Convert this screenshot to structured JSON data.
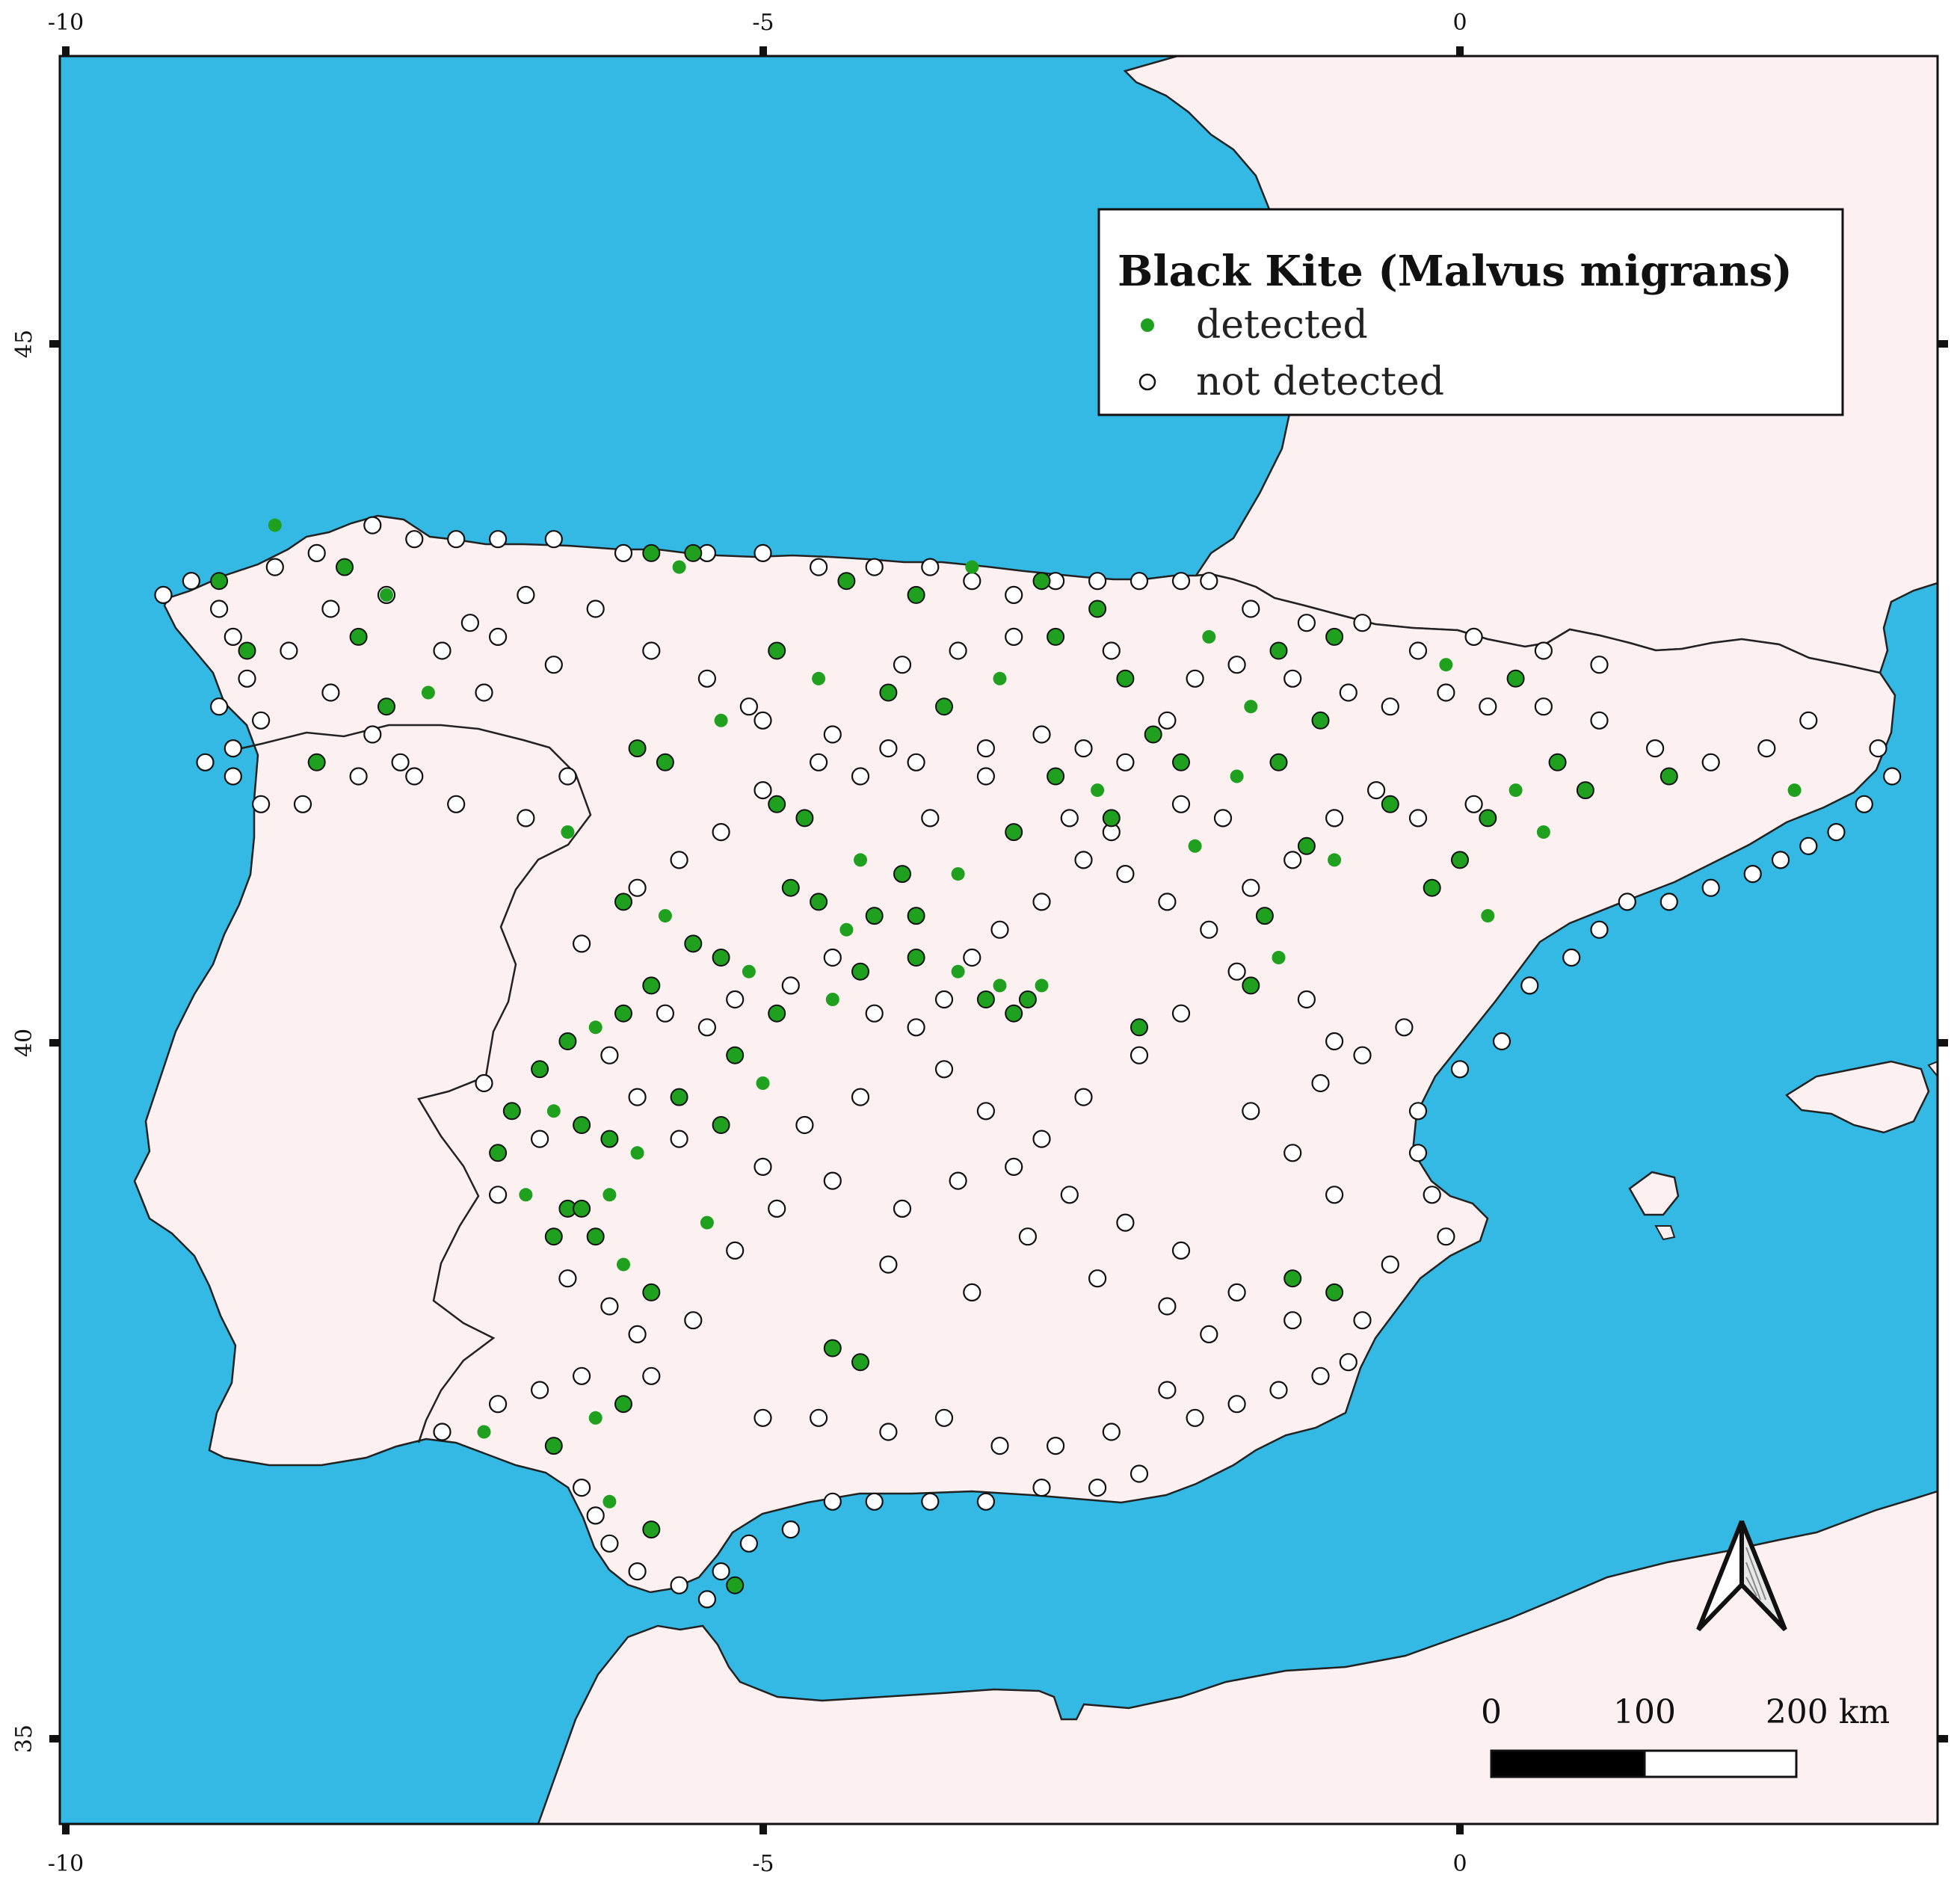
{
  "legend": {
    "title": "Black Kite (Malvus migrans)",
    "detected_label": "detected",
    "not_detected_label": "not detected"
  },
  "axes": {
    "x_ticks_top": [
      "-10",
      "-5",
      "0"
    ],
    "x_ticks_bottom": [
      "-10",
      "-5",
      "0"
    ],
    "y_ticks": [
      "45",
      "40",
      "35"
    ]
  },
  "scale_bar": {
    "labels": [
      "0",
      "100",
      "200 km"
    ]
  },
  "colors": {
    "sea": "#33b9e3",
    "land": "#fdf0f0",
    "detected": "#1fa01f",
    "not_detected": "#ffffff",
    "border": "#222222"
  },
  "icons": {
    "north_arrow": "north-arrow-icon"
  },
  "map_data": {
    "extent": {
      "lon_min": -10.0,
      "lon_max": 3.5,
      "lat_min": 34.4,
      "lat_max": 47.0
    },
    "detected_points": [
      [
        -8.5,
        43.7
      ],
      [
        -8.9,
        43.3
      ],
      [
        -8.0,
        43.4
      ],
      [
        -7.7,
        43.2
      ],
      [
        -7.9,
        42.9
      ],
      [
        -7.7,
        42.4
      ],
      [
        -7.4,
        42.5
      ],
      [
        -8.7,
        42.8
      ],
      [
        -8.2,
        42.0
      ],
      [
        -6.4,
        41.5
      ],
      [
        -5.8,
        43.5
      ],
      [
        -5.5,
        43.5
      ],
      [
        -5.6,
        43.4
      ],
      [
        -5.7,
        42.0
      ],
      [
        -5.9,
        42.1
      ],
      [
        -5.3,
        42.3
      ],
      [
        -4.9,
        41.7
      ],
      [
        -4.7,
        41.6
      ],
      [
        -4.3,
        41.3
      ],
      [
        -4.0,
        41.2
      ],
      [
        -3.9,
        40.9
      ],
      [
        -3.6,
        41.2
      ],
      [
        -3.2,
        41.5
      ],
      [
        -2.9,
        41.9
      ],
      [
        -2.6,
        41.8
      ],
      [
        -2.2,
        42.2
      ],
      [
        -2.0,
        42.0
      ],
      [
        -1.6,
        41.9
      ],
      [
        -1.3,
        42.0
      ],
      [
        -1.1,
        41.4
      ],
      [
        -0.9,
        41.3
      ],
      [
        -0.5,
        41.7
      ],
      [
        0.2,
        41.6
      ],
      [
        0.4,
        41.8
      ],
      [
        0.7,
        42.0
      ],
      [
        1.5,
        41.9
      ],
      [
        2.4,
        41.8
      ],
      [
        -4.4,
        43.3
      ],
      [
        -3.9,
        43.2
      ],
      [
        -3.5,
        43.4
      ],
      [
        -3.0,
        43.3
      ],
      [
        -2.6,
        43.1
      ],
      [
        -1.8,
        42.9
      ],
      [
        -1.3,
        42.8
      ],
      [
        -0.9,
        42.9
      ],
      [
        -0.1,
        42.7
      ],
      [
        0.4,
        42.6
      ],
      [
        -4.9,
        42.8
      ],
      [
        -4.6,
        42.6
      ],
      [
        -4.1,
        42.5
      ],
      [
        -3.7,
        42.4
      ],
      [
        -3.3,
        42.6
      ],
      [
        -2.9,
        42.9
      ],
      [
        -2.4,
        42.6
      ],
      [
        -1.5,
        42.4
      ],
      [
        -1.0,
        42.3
      ],
      [
        -6.0,
        41.0
      ],
      [
        -5.7,
        40.9
      ],
      [
        -5.5,
        40.7
      ],
      [
        -5.3,
        40.6
      ],
      [
        -5.1,
        40.5
      ],
      [
        -5.8,
        40.4
      ],
      [
        -6.0,
        40.2
      ],
      [
        -6.2,
        40.1
      ],
      [
        -6.4,
        40.0
      ],
      [
        -6.6,
        39.8
      ],
      [
        -6.5,
        39.5
      ],
      [
        -6.3,
        39.4
      ],
      [
        -6.1,
        39.3
      ],
      [
        -5.9,
        39.2
      ],
      [
        -6.8,
        39.5
      ],
      [
        -6.9,
        39.2
      ],
      [
        -6.7,
        38.9
      ],
      [
        -6.4,
        38.8
      ],
      [
        -6.2,
        38.6
      ],
      [
        -6.0,
        38.4
      ],
      [
        -5.8,
        38.2
      ],
      [
        -4.9,
        40.2
      ],
      [
        -4.5,
        40.3
      ],
      [
        -4.3,
        40.5
      ],
      [
        -3.9,
        40.6
      ],
      [
        -3.6,
        40.5
      ],
      [
        -3.4,
        40.3
      ],
      [
        -3.2,
        40.2
      ],
      [
        -3.0,
        40.4
      ],
      [
        -2.3,
        40.1
      ],
      [
        -1.5,
        40.4
      ],
      [
        -1.3,
        40.6
      ],
      [
        -1.4,
        40.9
      ],
      [
        -5.2,
        39.9
      ],
      [
        -5.0,
        39.7
      ],
      [
        -5.3,
        39.4
      ],
      [
        -5.6,
        39.6
      ],
      [
        -5.4,
        38.7
      ],
      [
        -4.5,
        37.8
      ],
      [
        -4.3,
        37.7
      ],
      [
        -6.2,
        37.3
      ],
      [
        -6.0,
        37.4
      ],
      [
        -6.5,
        37.1
      ],
      [
        -6.1,
        36.7
      ],
      [
        -5.8,
        36.5
      ],
      [
        -5.2,
        36.1
      ],
      [
        -7.0,
        37.2
      ],
      [
        -6.5,
        38.6
      ],
      [
        -6.3,
        38.8
      ],
      [
        -6.1,
        38.9
      ],
      [
        -4.8,
        41.1
      ],
      [
        -4.6,
        41.0
      ],
      [
        -4.4,
        40.8
      ],
      [
        -4.2,
        40.9
      ],
      [
        -3.1,
        40.3
      ],
      [
        -3.3,
        40.4
      ],
      [
        -0.9,
        38.2
      ],
      [
        -1.2,
        38.3
      ],
      [
        -1.9,
        41.4
      ],
      [
        -2.5,
        41.6
      ],
      [
        0.9,
        41.8
      ],
      [
        0.6,
        41.5
      ],
      [
        0.0,
        41.3
      ],
      [
        -0.2,
        41.1
      ],
      [
        0.2,
        40.9
      ]
    ],
    "not_detected_points": [
      [
        -9.3,
        43.2
      ],
      [
        -9.1,
        43.3
      ],
      [
        -8.9,
        43.1
      ],
      [
        -8.8,
        42.9
      ],
      [
        -8.7,
        42.6
      ],
      [
        -8.9,
        42.4
      ],
      [
        -8.6,
        42.3
      ],
      [
        -8.8,
        42.1
      ],
      [
        -9.0,
        42.0
      ],
      [
        -8.8,
        41.9
      ],
      [
        -8.6,
        41.7
      ],
      [
        -8.3,
        41.7
      ],
      [
        -8.5,
        43.4
      ],
      [
        -8.2,
        43.5
      ],
      [
        -7.8,
        43.7
      ],
      [
        -7.5,
        43.6
      ],
      [
        -7.2,
        43.6
      ],
      [
        -6.9,
        43.6
      ],
      [
        -6.5,
        43.6
      ],
      [
        -6.0,
        43.5
      ],
      [
        -5.4,
        43.5
      ],
      [
        -5.0,
        43.5
      ],
      [
        -4.6,
        43.4
      ],
      [
        -4.2,
        43.4
      ],
      [
        -3.8,
        43.4
      ],
      [
        -3.5,
        43.3
      ],
      [
        -3.2,
        43.2
      ],
      [
        -2.9,
        43.3
      ],
      [
        -2.6,
        43.3
      ],
      [
        -2.3,
        43.3
      ],
      [
        -2.0,
        43.3
      ],
      [
        -1.8,
        43.3
      ],
      [
        -8.1,
        43.1
      ],
      [
        -7.7,
        43.2
      ],
      [
        -7.3,
        42.8
      ],
      [
        -6.9,
        42.9
      ],
      [
        -6.5,
        42.7
      ],
      [
        -7.0,
        42.5
      ],
      [
        -7.6,
        42.0
      ],
      [
        -7.9,
        41.9
      ],
      [
        -7.2,
        41.7
      ],
      [
        -6.7,
        41.6
      ],
      [
        -6.4,
        41.9
      ],
      [
        -5.8,
        42.8
      ],
      [
        -5.4,
        42.6
      ],
      [
        -5.1,
        42.4
      ],
      [
        -5.0,
        42.3
      ],
      [
        -4.5,
        42.2
      ],
      [
        -4.1,
        42.1
      ],
      [
        -3.9,
        42.0
      ],
      [
        -3.4,
        42.1
      ],
      [
        -3.0,
        42.2
      ],
      [
        -2.7,
        42.1
      ],
      [
        -2.4,
        42.0
      ],
      [
        -2.1,
        42.3
      ],
      [
        -1.9,
        42.6
      ],
      [
        -1.6,
        42.7
      ],
      [
        -1.2,
        42.6
      ],
      [
        -0.8,
        42.5
      ],
      [
        -0.5,
        42.4
      ],
      [
        -0.1,
        42.5
      ],
      [
        0.2,
        42.4
      ],
      [
        0.6,
        42.4
      ],
      [
        1.0,
        42.3
      ],
      [
        1.4,
        42.1
      ],
      [
        1.8,
        42.0
      ],
      [
        2.2,
        42.1
      ],
      [
        2.5,
        42.3
      ],
      [
        3.0,
        42.1
      ],
      [
        3.1,
        41.9
      ],
      [
        2.9,
        41.7
      ],
      [
        2.7,
        41.5
      ],
      [
        2.5,
        41.4
      ],
      [
        2.3,
        41.3
      ],
      [
        2.1,
        41.2
      ],
      [
        1.8,
        41.1
      ],
      [
        1.5,
        41.0
      ],
      [
        1.2,
        41.0
      ],
      [
        1.0,
        40.8
      ],
      [
        0.8,
        40.6
      ],
      [
        0.5,
        40.4
      ],
      [
        0.3,
        40.0
      ],
      [
        0.0,
        39.8
      ],
      [
        -0.3,
        39.5
      ],
      [
        -0.3,
        39.2
      ],
      [
        -0.2,
        38.9
      ],
      [
        -0.1,
        38.6
      ],
      [
        -0.5,
        38.4
      ],
      [
        -0.7,
        38.0
      ],
      [
        -0.8,
        37.7
      ],
      [
        -1.0,
        37.6
      ],
      [
        -1.3,
        37.5
      ],
      [
        -1.6,
        37.4
      ],
      [
        -1.9,
        37.3
      ],
      [
        -2.3,
        36.9
      ],
      [
        -2.6,
        36.8
      ],
      [
        -3.0,
        36.8
      ],
      [
        -3.4,
        36.7
      ],
      [
        -3.8,
        36.7
      ],
      [
        -4.2,
        36.7
      ],
      [
        -4.5,
        36.7
      ],
      [
        -4.8,
        36.5
      ],
      [
        -5.1,
        36.4
      ],
      [
        -5.3,
        36.2
      ],
      [
        -5.6,
        36.1
      ],
      [
        -5.9,
        36.2
      ],
      [
        -6.1,
        36.4
      ],
      [
        -6.2,
        36.6
      ],
      [
        -6.3,
        36.8
      ],
      [
        -5.4,
        36.0
      ],
      [
        -5.8,
        37.6
      ],
      [
        -6.3,
        37.6
      ],
      [
        -6.6,
        37.5
      ],
      [
        -6.9,
        37.4
      ],
      [
        -7.3,
        37.2
      ],
      [
        -5.0,
        37.3
      ],
      [
        -4.6,
        37.3
      ],
      [
        -4.1,
        37.2
      ],
      [
        -3.7,
        37.3
      ],
      [
        -3.3,
        37.1
      ],
      [
        -2.9,
        37.1
      ],
      [
        -2.5,
        37.2
      ],
      [
        -2.1,
        37.5
      ],
      [
        -5.5,
        38.0
      ],
      [
        -5.2,
        38.5
      ],
      [
        -4.9,
        38.8
      ],
      [
        -4.5,
        39.0
      ],
      [
        -4.0,
        38.8
      ],
      [
        -3.6,
        39.0
      ],
      [
        -3.2,
        39.1
      ],
      [
        -2.8,
        38.9
      ],
      [
        -2.4,
        38.7
      ],
      [
        -2.0,
        38.5
      ],
      [
        -1.6,
        38.2
      ],
      [
        -1.2,
        38.0
      ],
      [
        -0.9,
        38.9
      ],
      [
        -1.2,
        39.2
      ],
      [
        -1.5,
        39.5
      ],
      [
        -1.0,
        39.7
      ],
      [
        -0.7,
        39.9
      ],
      [
        -3.7,
        39.8
      ],
      [
        -3.4,
        39.5
      ],
      [
        -3.0,
        39.3
      ],
      [
        -2.7,
        39.6
      ],
      [
        -2.3,
        39.9
      ],
      [
        -2.0,
        40.2
      ],
      [
        -1.6,
        40.5
      ],
      [
        -1.1,
        40.3
      ],
      [
        -0.9,
        40.0
      ],
      [
        -0.4,
        40.1
      ],
      [
        -4.3,
        39.6
      ],
      [
        -4.7,
        39.4
      ],
      [
        -5.0,
        39.1
      ],
      [
        -5.6,
        39.3
      ],
      [
        -5.9,
        39.6
      ],
      [
        -6.1,
        39.9
      ],
      [
        -5.7,
        40.2
      ],
      [
        -5.4,
        40.1
      ],
      [
        -5.2,
        40.3
      ],
      [
        -4.8,
        40.4
      ],
      [
        -4.5,
        40.6
      ],
      [
        -4.2,
        40.2
      ],
      [
        -3.9,
        40.1
      ],
      [
        -3.7,
        40.3
      ],
      [
        -3.5,
        40.6
      ],
      [
        -3.3,
        40.8
      ],
      [
        -3.0,
        41.0
      ],
      [
        -2.7,
        41.3
      ],
      [
        -2.4,
        41.2
      ],
      [
        -2.1,
        41.0
      ],
      [
        -1.8,
        40.8
      ],
      [
        -1.5,
        41.1
      ],
      [
        -1.2,
        41.3
      ],
      [
        -0.9,
        41.6
      ],
      [
        -0.6,
        41.8
      ],
      [
        -0.3,
        41.6
      ],
      [
        0.1,
        41.7
      ],
      [
        -7.0,
        39.7
      ],
      [
        -6.6,
        39.3
      ],
      [
        -6.9,
        38.9
      ],
      [
        -6.4,
        38.3
      ],
      [
        -6.1,
        38.1
      ],
      [
        -5.9,
        37.9
      ],
      [
        -4.3,
        41.9
      ],
      [
        -4.6,
        42.0
      ],
      [
        -5.0,
        41.8
      ],
      [
        -5.3,
        41.5
      ],
      [
        -5.6,
        41.3
      ],
      [
        -5.9,
        41.1
      ],
      [
        -6.3,
        40.7
      ],
      [
        -3.8,
        41.6
      ],
      [
        -3.4,
        41.9
      ],
      [
        -2.8,
        41.6
      ],
      [
        -2.5,
        41.5
      ],
      [
        -2.0,
        41.7
      ],
      [
        -1.7,
        41.6
      ],
      [
        -4.0,
        42.7
      ],
      [
        -3.6,
        42.8
      ],
      [
        -3.2,
        42.9
      ],
      [
        -2.5,
        42.8
      ],
      [
        -0.3,
        42.8
      ],
      [
        0.1,
        42.9
      ],
      [
        0.6,
        42.8
      ],
      [
        1.0,
        42.7
      ],
      [
        -1.5,
        43.1
      ],
      [
        -1.1,
        43.0
      ],
      [
        -0.7,
        43.0
      ],
      [
        -6.2,
        43.1
      ],
      [
        -6.7,
        43.2
      ],
      [
        -7.1,
        43.0
      ],
      [
        -8.4,
        42.8
      ],
      [
        -8.1,
        42.5
      ],
      [
        -7.8,
        42.2
      ],
      [
        -7.5,
        41.9
      ],
      [
        -2.1,
        38.1
      ],
      [
        -1.8,
        37.9
      ],
      [
        -2.6,
        38.3
      ],
      [
        -3.1,
        38.6
      ],
      [
        -3.5,
        38.2
      ],
      [
        -4.1,
        38.4
      ]
    ]
  }
}
